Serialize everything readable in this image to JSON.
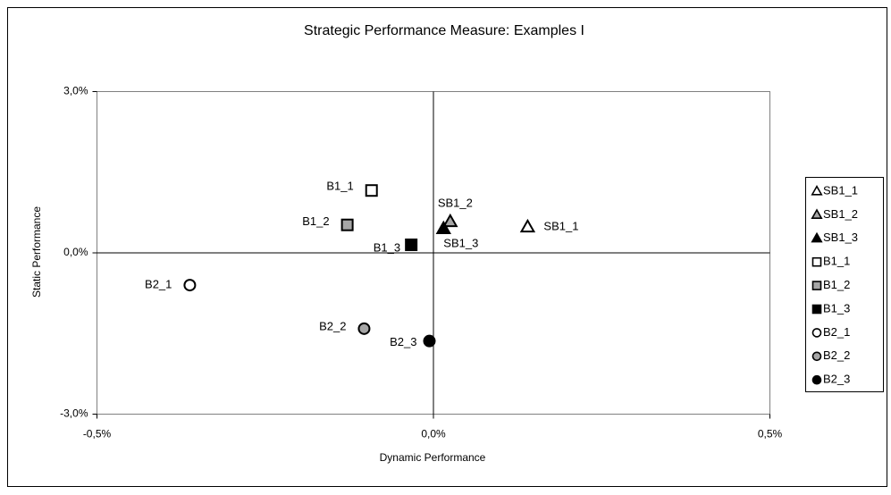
{
  "chart_data": {
    "type": "scatter",
    "title": "Strategic Performance Measure: Examples I",
    "x_label": "Dynamic Performance",
    "y_label": "Static Performance",
    "xlim": [
      -0.5,
      0.5
    ],
    "ylim": [
      -3,
      3
    ],
    "xticks": [
      {
        "value": -0.5,
        "label": "-0,5%"
      },
      {
        "value": 0,
        "label": "0,0%"
      },
      {
        "value": 0.5,
        "label": "0,5%"
      }
    ],
    "yticks": [
      {
        "value": -3,
        "label": "-3,0%"
      },
      {
        "value": 0,
        "label": "0,0%"
      },
      {
        "value": 3,
        "label": "3,0%"
      }
    ],
    "legend": "right",
    "series": [
      {
        "name": "SB1_1",
        "marker": "triangle",
        "color": "#ffffff",
        "x": [
          0.14
        ],
        "values": [
          0.48
        ]
      },
      {
        "name": "SB1_2",
        "marker": "triangle",
        "color": "#a6a6a6",
        "x": [
          0.025
        ],
        "values": [
          0.58
        ]
      },
      {
        "name": "SB1_3",
        "marker": "triangle",
        "color": "#000000",
        "x": [
          0.015
        ],
        "values": [
          0.45
        ]
      },
      {
        "name": "B1_1",
        "marker": "square",
        "color": "#ffffff",
        "x": [
          -0.092
        ],
        "values": [
          1.16
        ]
      },
      {
        "name": "B1_2",
        "marker": "square",
        "color": "#a6a6a6",
        "x": [
          -0.128
        ],
        "values": [
          0.52
        ]
      },
      {
        "name": "B1_3",
        "marker": "square",
        "color": "#000000",
        "x": [
          -0.033
        ],
        "values": [
          0.15
        ]
      },
      {
        "name": "B2_1",
        "marker": "circle",
        "color": "#ffffff",
        "x": [
          -0.362
        ],
        "values": [
          -0.6
        ]
      },
      {
        "name": "B2_2",
        "marker": "circle",
        "color": "#a6a6a6",
        "x": [
          -0.103
        ],
        "values": [
          -1.41
        ]
      },
      {
        "name": "B2_3",
        "marker": "circle",
        "color": "#000000",
        "x": [
          -0.006
        ],
        "values": [
          -1.64
        ]
      }
    ]
  }
}
